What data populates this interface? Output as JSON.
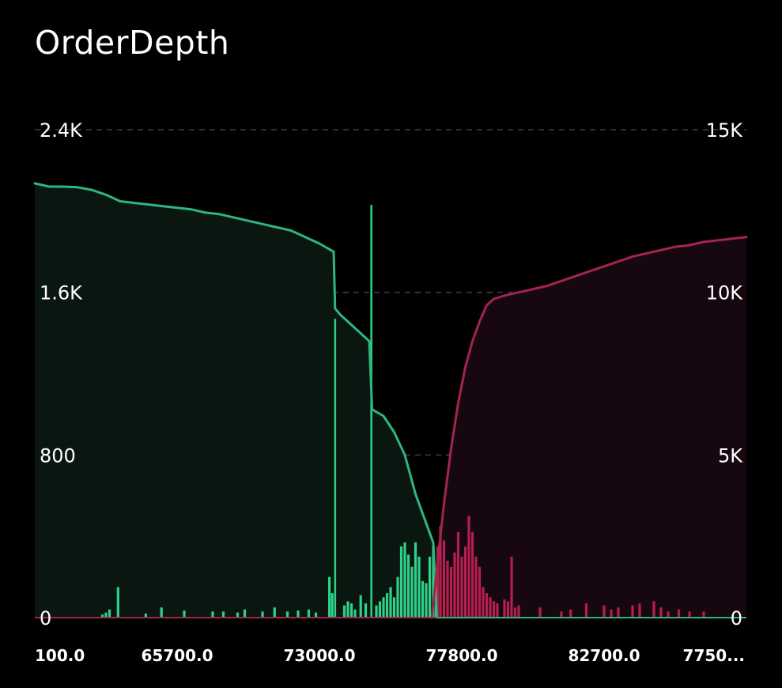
{
  "title": "OrderDepth",
  "colors": {
    "background": "#000000",
    "bid": "#2fb57d",
    "bid_bar": "#2fd189",
    "bid_fill": "#0a1710",
    "ask": "#a3254f",
    "ask_bar": "#b51f4f",
    "ask_fill": "#170710",
    "grid": "#3a3f4a",
    "text": "#ffffff"
  },
  "chart_data": {
    "type": "area",
    "title": "OrderDepth",
    "left_axis": {
      "range": [
        0,
        2400
      ],
      "ticks": [
        {
          "value": 0,
          "label": "0"
        },
        {
          "value": 800,
          "label": "800"
        },
        {
          "value": 1600,
          "label": "1.6K"
        },
        {
          "value": 2400,
          "label": "2.4K"
        }
      ]
    },
    "right_axis": {
      "range": [
        0,
        15000
      ],
      "ticks": [
        {
          "value": 0,
          "label": "0"
        },
        {
          "value": 5000,
          "label": "5K"
        },
        {
          "value": 10000,
          "label": "10K"
        },
        {
          "value": 15000,
          "label": "15K"
        }
      ]
    },
    "x_axis": {
      "range": [
        0,
        100
      ],
      "tick_labels": [
        {
          "pos": 0,
          "label": "100.0"
        },
        {
          "pos": 20,
          "label": "65700.0"
        },
        {
          "pos": 40,
          "label": "73000.0"
        },
        {
          "pos": 60,
          "label": "77800.0"
        },
        {
          "pos": 80,
          "label": "82700.0"
        },
        {
          "pos": 100,
          "label": "7750..."
        }
      ]
    },
    "grid": true,
    "series": [
      {
        "side": "bid",
        "kind": "cumulative-area",
        "axis": "right",
        "points": [
          [
            0,
            13350
          ],
          [
            1,
            13300
          ],
          [
            2,
            13250
          ],
          [
            4,
            13250
          ],
          [
            6,
            13230
          ],
          [
            8,
            13150
          ],
          [
            10,
            13000
          ],
          [
            12,
            12800
          ],
          [
            14,
            12750
          ],
          [
            16,
            12700
          ],
          [
            18,
            12650
          ],
          [
            20,
            12600
          ],
          [
            22,
            12550
          ],
          [
            24,
            12450
          ],
          [
            26,
            12400
          ],
          [
            28,
            12300
          ],
          [
            30,
            12200
          ],
          [
            32,
            12100
          ],
          [
            34,
            12000
          ],
          [
            36,
            11900
          ],
          [
            38,
            11700
          ],
          [
            40,
            11500
          ],
          [
            42,
            11250
          ],
          [
            42.2,
            9500
          ],
          [
            43,
            9300
          ],
          [
            45,
            8900
          ],
          [
            47,
            8500
          ],
          [
            47.4,
            6400
          ],
          [
            49,
            6200
          ],
          [
            50.5,
            5700
          ],
          [
            52,
            5000
          ],
          [
            53.5,
            3800
          ],
          [
            55,
            2900
          ],
          [
            56,
            2300
          ],
          [
            56.5,
            0
          ]
        ]
      },
      {
        "side": "ask",
        "kind": "cumulative-area",
        "axis": "right",
        "points": [
          [
            55.8,
            0
          ],
          [
            56.5,
            1500
          ],
          [
            57.5,
            3500
          ],
          [
            58.5,
            5200
          ],
          [
            59.5,
            6600
          ],
          [
            60.5,
            7700
          ],
          [
            61.5,
            8500
          ],
          [
            62.5,
            9100
          ],
          [
            63.5,
            9600
          ],
          [
            64.5,
            9800
          ],
          [
            66,
            9900
          ],
          [
            68,
            10000
          ],
          [
            70,
            10100
          ],
          [
            72,
            10200
          ],
          [
            74,
            10350
          ],
          [
            76,
            10500
          ],
          [
            78,
            10650
          ],
          [
            80,
            10800
          ],
          [
            82,
            10950
          ],
          [
            84,
            11100
          ],
          [
            86,
            11200
          ],
          [
            88,
            11300
          ],
          [
            90,
            11400
          ],
          [
            92,
            11450
          ],
          [
            94,
            11550
          ],
          [
            96,
            11600
          ],
          [
            98,
            11650
          ],
          [
            100,
            11700
          ]
        ]
      },
      {
        "side": "bid",
        "kind": "volume-bars",
        "axis": "left",
        "bars": [
          [
            9.5,
            15
          ],
          [
            10,
            25
          ],
          [
            10.5,
            40
          ],
          [
            11.7,
            150
          ],
          [
            15.6,
            20
          ],
          [
            17.8,
            50
          ],
          [
            21,
            35
          ],
          [
            25,
            30
          ],
          [
            26.5,
            30
          ],
          [
            28.5,
            25
          ],
          [
            29.5,
            40
          ],
          [
            32,
            30
          ],
          [
            33.7,
            50
          ],
          [
            35.5,
            30
          ],
          [
            37,
            35
          ],
          [
            38.5,
            40
          ],
          [
            39.5,
            25
          ],
          [
            41.4,
            200
          ],
          [
            41.8,
            120
          ],
          [
            42.2,
            1470
          ],
          [
            43.5,
            60
          ],
          [
            44,
            80
          ],
          [
            44.5,
            70
          ],
          [
            45,
            40
          ],
          [
            45.8,
            110
          ],
          [
            46.5,
            70
          ],
          [
            47.3,
            2030
          ],
          [
            48,
            60
          ],
          [
            48.5,
            80
          ],
          [
            49,
            100
          ],
          [
            49.5,
            120
          ],
          [
            50,
            150
          ],
          [
            50.5,
            100
          ],
          [
            51,
            200
          ],
          [
            51.5,
            350
          ],
          [
            52,
            370
          ],
          [
            52.5,
            310
          ],
          [
            53,
            250
          ],
          [
            53.5,
            370
          ],
          [
            54,
            300
          ],
          [
            54.5,
            180
          ],
          [
            55,
            170
          ],
          [
            55.5,
            300
          ],
          [
            56,
            350
          ],
          [
            56.4,
            240
          ]
        ]
      },
      {
        "side": "ask",
        "kind": "volume-bars",
        "axis": "left",
        "bars": [
          [
            56.6,
            350
          ],
          [
            57,
            450
          ],
          [
            57.5,
            380
          ],
          [
            58,
            280
          ],
          [
            58.5,
            250
          ],
          [
            59,
            320
          ],
          [
            59.5,
            420
          ],
          [
            60,
            300
          ],
          [
            60.5,
            350
          ],
          [
            61,
            500
          ],
          [
            61.5,
            420
          ],
          [
            62,
            300
          ],
          [
            62.5,
            250
          ],
          [
            63,
            150
          ],
          [
            63.5,
            120
          ],
          [
            64,
            100
          ],
          [
            64.5,
            80
          ],
          [
            65,
            70
          ],
          [
            66,
            90
          ],
          [
            66.5,
            80
          ],
          [
            67,
            300
          ],
          [
            67.5,
            50
          ],
          [
            68,
            60
          ],
          [
            71,
            50
          ],
          [
            74,
            30
          ],
          [
            75.3,
            40
          ],
          [
            77.5,
            70
          ],
          [
            80,
            60
          ],
          [
            81,
            40
          ],
          [
            82,
            50
          ],
          [
            84,
            60
          ],
          [
            85,
            70
          ],
          [
            87,
            80
          ],
          [
            88,
            50
          ],
          [
            89,
            30
          ],
          [
            90.5,
            40
          ],
          [
            92,
            30
          ],
          [
            94,
            30
          ]
        ]
      }
    ]
  }
}
